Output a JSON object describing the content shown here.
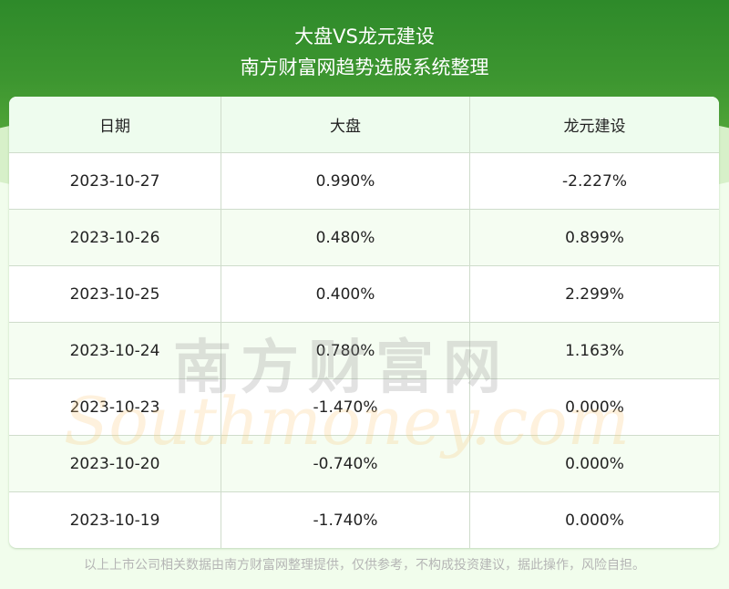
{
  "header": {
    "title": "大盘VS龙元建设",
    "subtitle": "南方财富网趋势选股系统整理"
  },
  "table": {
    "columns": [
      "日期",
      "大盘",
      "龙元建设"
    ],
    "rows": [
      [
        "2023-10-27",
        "0.990%",
        "-2.227%"
      ],
      [
        "2023-10-26",
        "0.480%",
        "0.899%"
      ],
      [
        "2023-10-25",
        "0.400%",
        "2.299%"
      ],
      [
        "2023-10-24",
        "0.780%",
        "1.163%"
      ],
      [
        "2023-10-23",
        "-1.470%",
        "0.000%"
      ],
      [
        "2023-10-20",
        "-0.740%",
        "0.000%"
      ],
      [
        "2023-10-19",
        "-1.740%",
        "0.000%"
      ]
    ]
  },
  "watermark": {
    "cn": "南方财富网",
    "en": "Southmoney.com"
  },
  "footer": "以上上市公司相关数据由南方财富网整理提供，仅供参考，不构成投资建议，据此操作，风险自担。"
}
